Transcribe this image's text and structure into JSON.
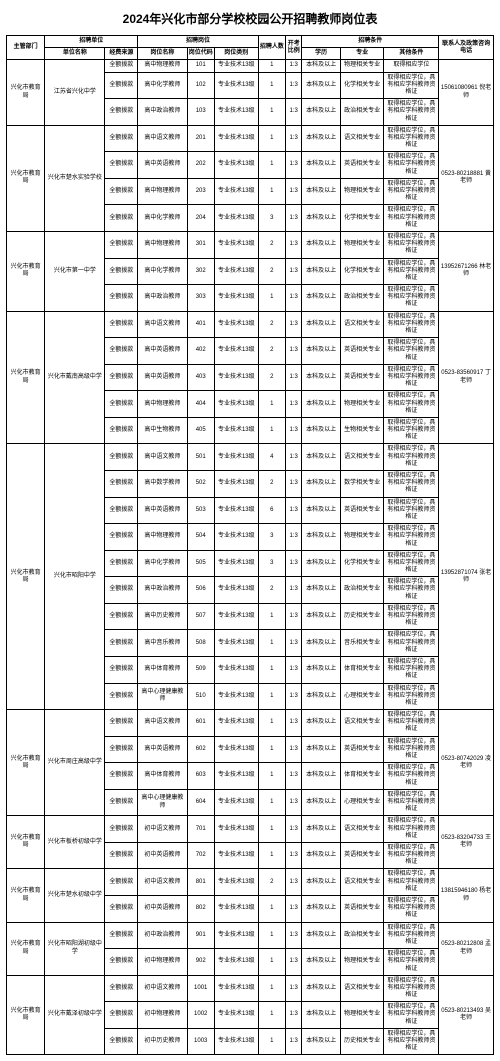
{
  "title": "2024年兴化市部分学校校园公开招聘教师岗位表",
  "headers": {
    "dept": "主管部门",
    "unit_group": "招聘单位",
    "unit": "单位名称",
    "fund": "经费来源",
    "pos_group": "招聘岗位",
    "pos": "岗位名称",
    "code": "岗位代码",
    "cat": "岗位类别",
    "cnt": "招聘人数",
    "ratio": "开考比例",
    "cond_group": "招聘条件",
    "edu": "学历",
    "major": "专业",
    "other": "其他条件",
    "phone": "联系人及政策咨询电话"
  },
  "const": {
    "dept": "兴化市教育局",
    "fund": "全额拨款",
    "edu_bk": "本科及以上",
    "ratio": "1:3",
    "other_xwz": "取得相应学位，具有相应学科教师资格证",
    "other_xw": "取得相应学位"
  },
  "phones": {
    "p1": "15061080961 倪老师",
    "p2": "0523-80218881 黄老师",
    "p3": "13952671266 林老师",
    "p4": "0523-83560917 丁老师",
    "p5": "13952871074 张老师",
    "p6": "0523-80742029 凌老师",
    "p7": "0523-83204733 王老师",
    "p8": "13815946180 杨老师",
    "p9": "0523-80212808 孟老师",
    "p10": "0523-80213493 吴老师"
  },
  "schools": [
    {
      "unit": "江苏省兴化中学",
      "phone_key": "p1",
      "rows": [
        {
          "pos": "高中物理教师",
          "code": "101",
          "cat": "专业技术13级",
          "cnt": "1",
          "edu": "edu_bk",
          "major": "物理相关专业",
          "other": "other_xw"
        },
        {
          "pos": "高中化学教师",
          "code": "102",
          "cat": "专业技术13级",
          "cnt": "1",
          "edu": "edu_bk",
          "major": "化学相关专业",
          "other": "other_xwz"
        },
        {
          "pos": "高中政治教师",
          "code": "103",
          "cat": "专业技术13级",
          "cnt": "1",
          "edu": "edu_bk",
          "major": "政治相关专业",
          "other": "other_xwz"
        }
      ]
    },
    {
      "unit": "兴化市楚水实验学校",
      "phone_key": "p2",
      "rows": [
        {
          "pos": "高中语文教师",
          "code": "201",
          "cat": "专业技术13级",
          "cnt": "1",
          "edu": "edu_bk",
          "major": "语文相关专业",
          "other": "other_xwz"
        },
        {
          "pos": "高中英语教师",
          "code": "202",
          "cat": "专业技术13级",
          "cnt": "1",
          "edu": "edu_bk",
          "major": "英语相关专业",
          "other": "other_xwz"
        },
        {
          "pos": "高中物理教师",
          "code": "203",
          "cat": "专业技术13级",
          "cnt": "1",
          "edu": "edu_bk",
          "major": "物理相关专业",
          "other": "other_xwz"
        },
        {
          "pos": "高中化学教师",
          "code": "204",
          "cat": "专业技术13级",
          "cnt": "3",
          "edu": "edu_bk",
          "major": "化学相关专业",
          "other": "other_xwz"
        }
      ]
    },
    {
      "unit": "兴化市第一中学",
      "phone_key": "p3",
      "rows": [
        {
          "pos": "高中物理教师",
          "code": "301",
          "cat": "专业技术13级",
          "cnt": "2",
          "edu": "edu_bk",
          "major": "物理相关专业",
          "other": "other_xwz"
        },
        {
          "pos": "高中化学教师",
          "code": "302",
          "cat": "专业技术13级",
          "cnt": "2",
          "edu": "edu_bk",
          "major": "化学相关专业",
          "other": "other_xwz"
        },
        {
          "pos": "高中政治教师",
          "code": "303",
          "cat": "专业技术13级",
          "cnt": "1",
          "edu": "edu_bk",
          "major": "政治相关专业",
          "other": "other_xwz"
        }
      ]
    },
    {
      "unit": "兴化市戴南高级中学",
      "phone_key": "p4",
      "rows": [
        {
          "pos": "高中语文教师",
          "code": "401",
          "cat": "专业技术13级",
          "cnt": "2",
          "edu": "edu_bk",
          "major": "语文相关专业",
          "other": "other_xwz"
        },
        {
          "pos": "高中英语教师",
          "code": "402",
          "cat": "专业技术13级",
          "cnt": "2",
          "edu": "edu_bk",
          "major": "英语相关专业",
          "other": "other_xwz"
        },
        {
          "pos": "高中英语教师",
          "code": "403",
          "cat": "专业技术13级",
          "cnt": "2",
          "edu": "edu_bk",
          "major": "英语相关专业",
          "other": "other_xwz"
        },
        {
          "pos": "高中物理教师",
          "code": "404",
          "cat": "专业技术13级",
          "cnt": "1",
          "edu": "edu_bk",
          "major": "物理相关专业",
          "other": "other_xwz"
        },
        {
          "pos": "高中生物教师",
          "code": "405",
          "cat": "专业技术13级",
          "cnt": "1",
          "edu": "edu_bk",
          "major": "生物相关专业",
          "other": "other_xwz"
        }
      ]
    },
    {
      "unit": "兴化市昭阳中学",
      "phone_key": "p5",
      "rows": [
        {
          "pos": "高中语文教师",
          "code": "501",
          "cat": "专业技术13级",
          "cnt": "4",
          "edu": "edu_bk",
          "major": "语文相关专业",
          "other": "other_xwz"
        },
        {
          "pos": "高中数学教师",
          "code": "502",
          "cat": "专业技术13级",
          "cnt": "2",
          "edu": "edu_bk",
          "major": "数学相关专业",
          "other": "other_xwz"
        },
        {
          "pos": "高中英语教师",
          "code": "503",
          "cat": "专业技术13级",
          "cnt": "6",
          "edu": "edu_bk",
          "major": "英语相关专业",
          "other": "other_xwz"
        },
        {
          "pos": "高中物理教师",
          "code": "504",
          "cat": "专业技术13级",
          "cnt": "3",
          "edu": "edu_bk",
          "major": "物理相关专业",
          "other": "other_xwz"
        },
        {
          "pos": "高中化学教师",
          "code": "505",
          "cat": "专业技术13级",
          "cnt": "3",
          "edu": "edu_bk",
          "major": "化学相关专业",
          "other": "other_xwz"
        },
        {
          "pos": "高中政治教师",
          "code": "506",
          "cat": "专业技术13级",
          "cnt": "2",
          "edu": "edu_bk",
          "major": "政治相关专业",
          "other": "other_xwz"
        },
        {
          "pos": "高中历史教师",
          "code": "507",
          "cat": "专业技术13级",
          "cnt": "1",
          "edu": "edu_bk",
          "major": "历史相关专业",
          "other": "other_xwz"
        },
        {
          "pos": "高中音乐教师",
          "code": "508",
          "cat": "专业技术13级",
          "cnt": "1",
          "edu": "edu_bk",
          "major": "音乐相关专业",
          "other": "other_xwz"
        },
        {
          "pos": "高中体育教师",
          "code": "509",
          "cat": "专业技术13级",
          "cnt": "1",
          "edu": "edu_bk",
          "major": "体育相关专业",
          "other": "other_xwz"
        },
        {
          "pos": "高中心理健康教师",
          "code": "510",
          "cat": "专业技术13级",
          "cnt": "1",
          "edu": "edu_bk",
          "major": "心理相关专业",
          "other": "other_xwz"
        }
      ]
    },
    {
      "unit": "兴化市周庄高级中学",
      "phone_key": "p6",
      "rows": [
        {
          "pos": "高中语文教师",
          "code": "601",
          "cat": "专业技术13级",
          "cnt": "1",
          "edu": "edu_bk",
          "major": "语文相关专业",
          "other": "other_xwz"
        },
        {
          "pos": "高中英语教师",
          "code": "602",
          "cat": "专业技术13级",
          "cnt": "1",
          "edu": "edu_bk",
          "major": "英语相关专业",
          "other": "other_xwz"
        },
        {
          "pos": "高中体育教师",
          "code": "603",
          "cat": "专业技术13级",
          "cnt": "1",
          "edu": "edu_bk",
          "major": "体育相关专业",
          "other": "other_xwz"
        },
        {
          "pos": "高中心理健康教师",
          "code": "604",
          "cat": "专业技术13级",
          "cnt": "1",
          "edu": "edu_bk",
          "major": "心理相关专业",
          "other": "other_xwz"
        }
      ]
    },
    {
      "unit": "兴化市板桥初级中学",
      "phone_key": "p7",
      "rows": [
        {
          "pos": "初中语文教师",
          "code": "701",
          "cat": "专业技术13级",
          "cnt": "1",
          "edu": "edu_bk",
          "major": "语文相关专业",
          "other": "other_xwz"
        },
        {
          "pos": "初中英语教师",
          "code": "702",
          "cat": "专业技术13级",
          "cnt": "1",
          "edu": "edu_bk",
          "major": "英语相关专业",
          "other": "other_xwz"
        }
      ]
    },
    {
      "unit": "兴化市楚水初级中学",
      "phone_key": "p8",
      "rows": [
        {
          "pos": "初中语文教师",
          "code": "801",
          "cat": "专业技术13级",
          "cnt": "2",
          "edu": "edu_bk",
          "major": "语文相关专业",
          "other": "other_xwz"
        },
        {
          "pos": "初中英语教师",
          "code": "802",
          "cat": "专业技术13级",
          "cnt": "1",
          "edu": "edu_bk",
          "major": "英语相关专业",
          "other": "other_xwz"
        }
      ]
    },
    {
      "unit": "兴化市昭阳湖初级中学",
      "phone_key": "p9",
      "rows": [
        {
          "pos": "初中政治教师",
          "code": "901",
          "cat": "专业技术13级",
          "cnt": "1",
          "edu": "edu_bk",
          "major": "政治相关专业",
          "other": "other_xwz"
        },
        {
          "pos": "初中物理教师",
          "code": "902",
          "cat": "专业技术13级",
          "cnt": "1",
          "edu": "edu_bk",
          "major": "物理相关专业",
          "other": "other_xwz"
        }
      ]
    },
    {
      "unit": "兴化市戴泽初级中学",
      "phone_key": "p10",
      "rows": [
        {
          "pos": "初中语文教师",
          "code": "1001",
          "cat": "专业技术13级",
          "cnt": "1",
          "edu": "edu_bk",
          "major": "语文相关专业",
          "other": "other_xwz"
        },
        {
          "pos": "初中物理教师",
          "code": "1002",
          "cat": "专业技术13级",
          "cnt": "1",
          "edu": "edu_bk",
          "major": "物理相关专业",
          "other": "other_xwz"
        },
        {
          "pos": "初中历史教师",
          "code": "1003",
          "cat": "专业技术13级",
          "cnt": "1",
          "edu": "edu_bk",
          "major": "历史相关专业",
          "other": "other_xwz"
        }
      ]
    }
  ]
}
